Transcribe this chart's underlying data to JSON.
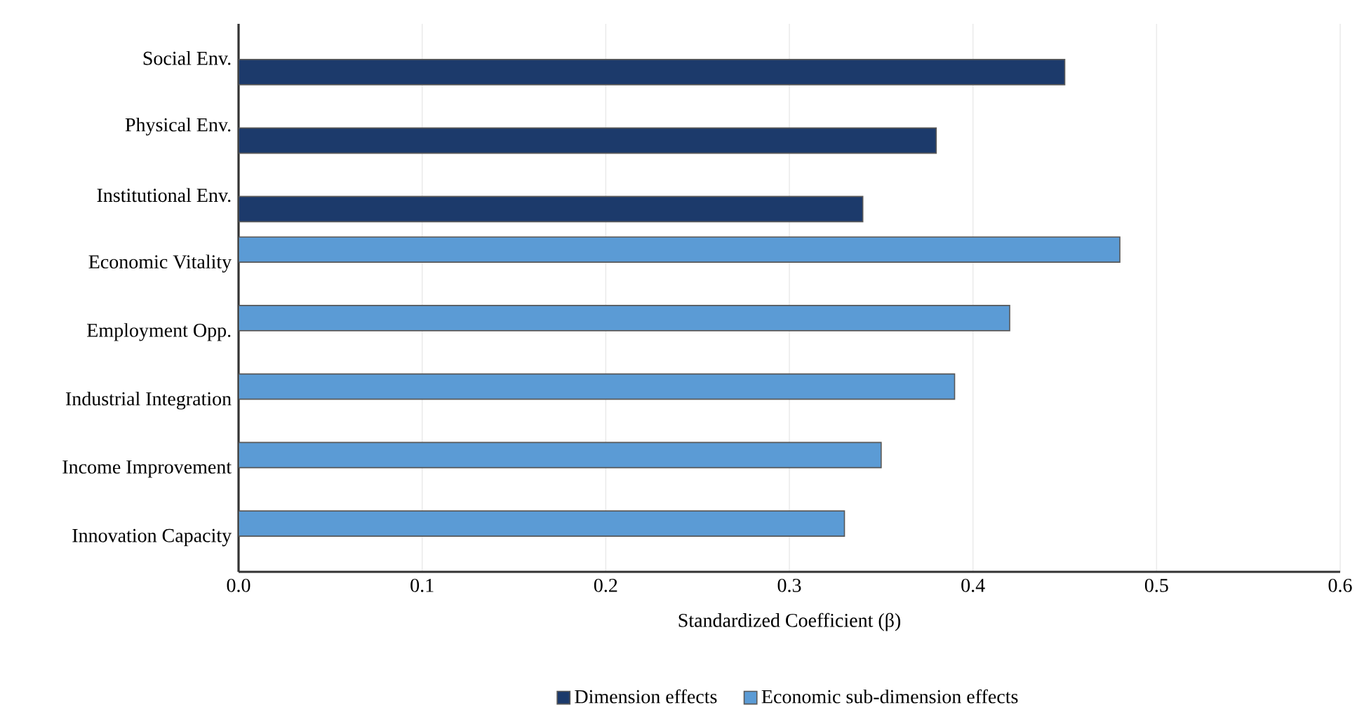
{
  "chart_data": {
    "type": "bar",
    "orientation": "horizontal",
    "categories": [
      "Social Env.",
      "Physical Env.",
      "Institutional Env.",
      "Economic Vitality",
      "Employment Opp.",
      "Industrial Integration",
      "Income Improvement",
      "Innovation Capacity"
    ],
    "series": [
      {
        "name": "Dimension effects",
        "color": "#1c3a6b",
        "values": [
          0.45,
          0.38,
          0.34,
          null,
          null,
          null,
          null,
          null
        ]
      },
      {
        "name": "Economic sub-dimension effects",
        "color": "#5b9bd5",
        "values": [
          null,
          null,
          null,
          0.48,
          0.42,
          0.39,
          0.35,
          0.33
        ]
      }
    ],
    "xlim": [
      0,
      0.6
    ],
    "xticks": [
      {
        "value": 0,
        "label": "0.0"
      },
      0.1,
      0.2,
      0.3,
      0.4,
      0.5,
      0.6
    ],
    "xlabel": "Standardized Coefficient (β)",
    "grid": "x",
    "legend": "bottom"
  }
}
